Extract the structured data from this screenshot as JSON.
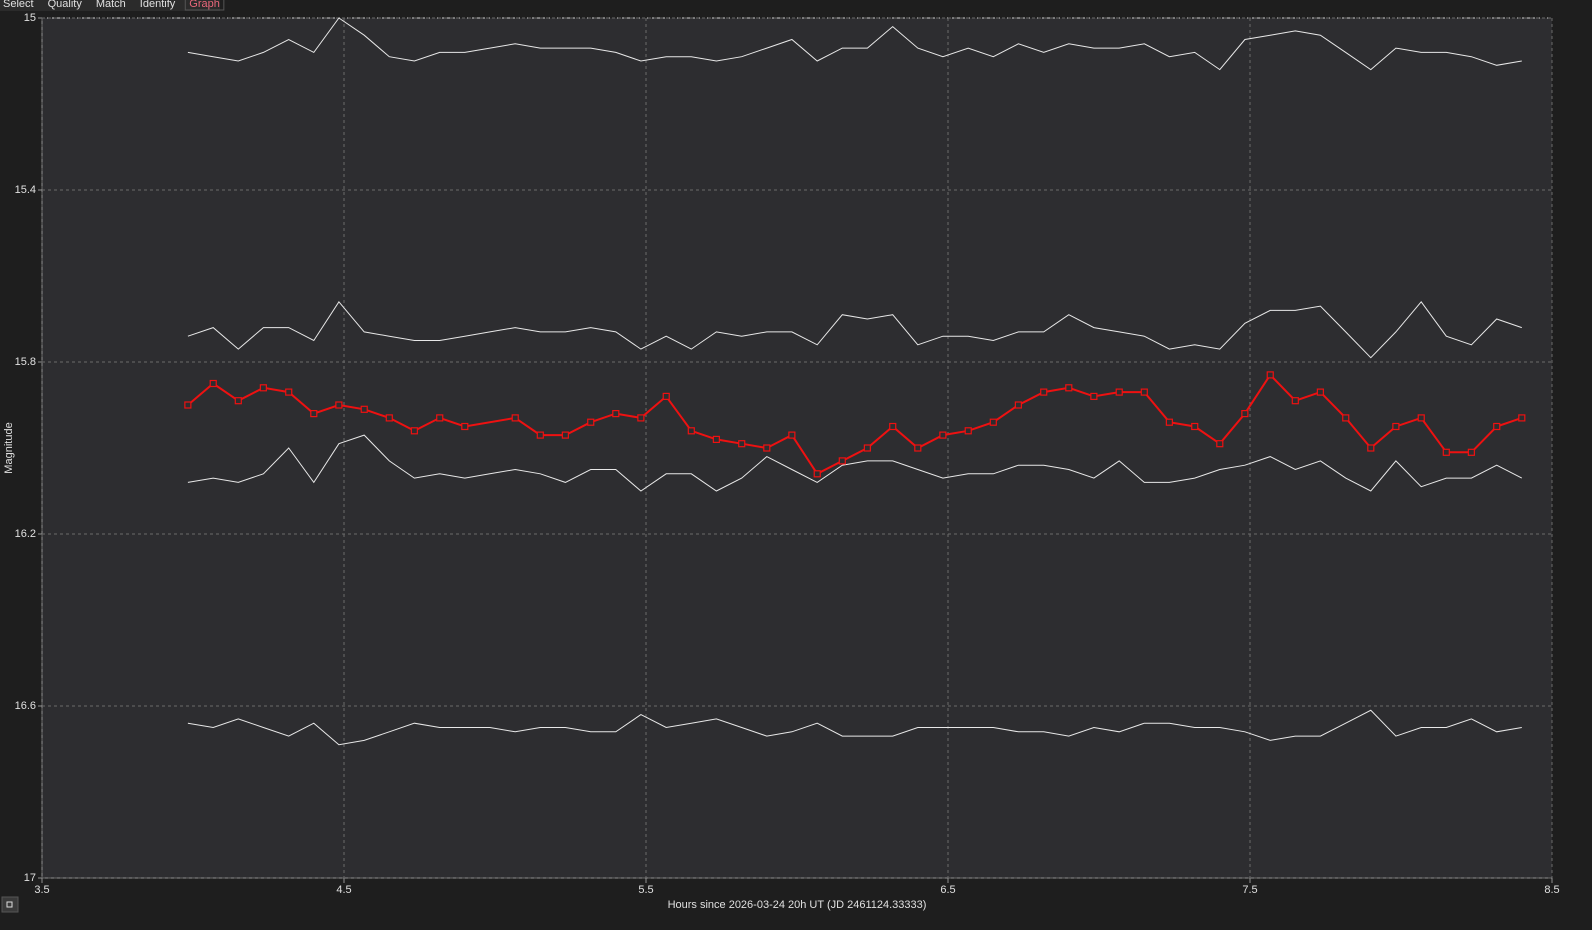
{
  "menu": {
    "tabs": [
      "Select",
      "Quality",
      "Match",
      "Identify",
      "Graph"
    ],
    "active": 4,
    "active_color": "#e8677a"
  },
  "chart_data": {
    "type": "line",
    "xlabel": "Hours since 2026-03-24 20h UT (JD 2461124.33333)",
    "ylabel": "Magnitude",
    "xlim": [
      3.5,
      8.5
    ],
    "xticks": [
      3.5,
      4.5,
      5.5,
      6.5,
      7.5,
      8.5
    ],
    "ylim": [
      17,
      15
    ],
    "yticks": [
      15,
      15.4,
      15.8,
      16.2,
      16.6,
      17
    ],
    "grid": true,
    "x": [
      3.983,
      4.067,
      4.15,
      4.233,
      4.317,
      4.4,
      4.483,
      4.567,
      4.65,
      4.733,
      4.817,
      4.9,
      4.983,
      5.067,
      5.15,
      5.233,
      5.317,
      5.4,
      5.483,
      5.567,
      5.65,
      5.733,
      5.817,
      5.9,
      5.983,
      6.067,
      6.15,
      6.233,
      6.317,
      6.4,
      6.483,
      6.567,
      6.65,
      6.733,
      6.817,
      6.9,
      6.983,
      7.067,
      7.15,
      7.233,
      7.317,
      7.4,
      7.483,
      7.567,
      7.65,
      7.733,
      7.817,
      7.9,
      7.983,
      8.067,
      8.15,
      8.233,
      8.317,
      8.4
    ],
    "series": [
      {
        "color": "#e8e8e8",
        "values": [
          15.08,
          15.09,
          15.1,
          15.08,
          15.05,
          15.08,
          15.0,
          15.04,
          15.09,
          15.1,
          15.08,
          15.08,
          15.07,
          15.06,
          15.07,
          15.07,
          15.07,
          15.08,
          15.1,
          15.09,
          15.09,
          15.1,
          15.09,
          15.07,
          15.05,
          15.1,
          15.07,
          15.07,
          15.02,
          15.07,
          15.09,
          15.07,
          15.09,
          15.06,
          15.08,
          15.06,
          15.07,
          15.07,
          15.06,
          15.09,
          15.08,
          15.12,
          15.05,
          15.04,
          15.03,
          15.04,
          15.08,
          15.12,
          15.07,
          15.08,
          15.08,
          15.09,
          15.11,
          15.1
        ]
      },
      {
        "color": "#e8e8e8",
        "values": [
          15.74,
          15.72,
          15.77,
          15.72,
          15.72,
          15.75,
          15.66,
          15.73,
          15.74,
          15.75,
          15.75,
          15.74,
          15.73,
          15.72,
          15.73,
          15.73,
          15.72,
          15.73,
          15.77,
          15.74,
          15.77,
          15.73,
          15.74,
          15.73,
          15.73,
          15.76,
          15.69,
          15.7,
          15.69,
          15.76,
          15.74,
          15.74,
          15.75,
          15.73,
          15.73,
          15.69,
          15.72,
          15.73,
          15.74,
          15.77,
          15.76,
          15.77,
          15.71,
          15.68,
          15.68,
          15.67,
          15.73,
          15.79,
          15.73,
          15.66,
          15.74,
          15.76,
          15.7,
          15.72
        ]
      },
      {
        "color": "#e8e8e8",
        "values": [
          16.08,
          16.07,
          16.08,
          16.06,
          16.0,
          16.08,
          15.99,
          15.97,
          16.03,
          16.07,
          16.06,
          16.07,
          16.06,
          16.05,
          16.06,
          16.08,
          16.05,
          16.05,
          16.1,
          16.06,
          16.06,
          16.1,
          16.07,
          16.02,
          16.05,
          16.08,
          16.04,
          16.03,
          16.03,
          16.05,
          16.07,
          16.06,
          16.06,
          16.04,
          16.04,
          16.05,
          16.07,
          16.03,
          16.08,
          16.08,
          16.07,
          16.05,
          16.04,
          16.02,
          16.05,
          16.03,
          16.07,
          16.1,
          16.03,
          16.09,
          16.07,
          16.07,
          16.04,
          16.07
        ]
      },
      {
        "color": "#e8e8e8",
        "values": [
          16.64,
          16.65,
          16.63,
          16.65,
          16.67,
          16.64,
          16.69,
          16.68,
          16.66,
          16.64,
          16.65,
          16.65,
          16.65,
          16.66,
          16.65,
          16.65,
          16.66,
          16.66,
          16.62,
          16.65,
          16.64,
          16.63,
          16.65,
          16.67,
          16.66,
          16.64,
          16.67,
          16.67,
          16.67,
          16.65,
          16.65,
          16.65,
          16.65,
          16.66,
          16.66,
          16.67,
          16.65,
          16.66,
          16.64,
          16.64,
          16.65,
          16.65,
          16.66,
          16.68,
          16.67,
          16.67,
          16.64,
          16.61,
          16.67,
          16.65,
          16.65,
          16.63,
          16.66,
          16.65
        ]
      },
      {
        "color": "#ee1111",
        "markers": true,
        "x": [
          3.983,
          4.067,
          4.15,
          4.233,
          4.317,
          4.4,
          4.483,
          4.567,
          4.65,
          4.733,
          4.817,
          4.9,
          5.067,
          5.15,
          5.233,
          5.317,
          5.4,
          5.483,
          5.567,
          5.65,
          5.733,
          5.817,
          5.9,
          5.983,
          6.067,
          6.15,
          6.233,
          6.317,
          6.4,
          6.483,
          6.567,
          6.65,
          6.733,
          6.817,
          6.9,
          6.983,
          7.067,
          7.15,
          7.233,
          7.317,
          7.4,
          7.483,
          7.567,
          7.65,
          7.733,
          7.817,
          7.9,
          7.983,
          8.067,
          8.15,
          8.233,
          8.317,
          8.4
        ],
        "values": [
          15.9,
          15.85,
          15.89,
          15.86,
          15.87,
          15.92,
          15.9,
          15.91,
          15.93,
          15.96,
          15.93,
          15.95,
          15.93,
          15.97,
          15.97,
          15.94,
          15.92,
          15.93,
          15.88,
          15.96,
          15.98,
          15.99,
          16.0,
          15.97,
          16.06,
          16.03,
          16.0,
          15.95,
          16.0,
          15.97,
          15.96,
          15.94,
          15.9,
          15.87,
          15.86,
          15.88,
          15.87,
          15.87,
          15.94,
          15.95,
          15.99,
          15.92,
          15.83,
          15.89,
          15.87,
          15.93,
          16.0,
          15.95,
          15.93,
          16.01,
          16.01,
          15.95,
          15.93
        ]
      }
    ]
  }
}
